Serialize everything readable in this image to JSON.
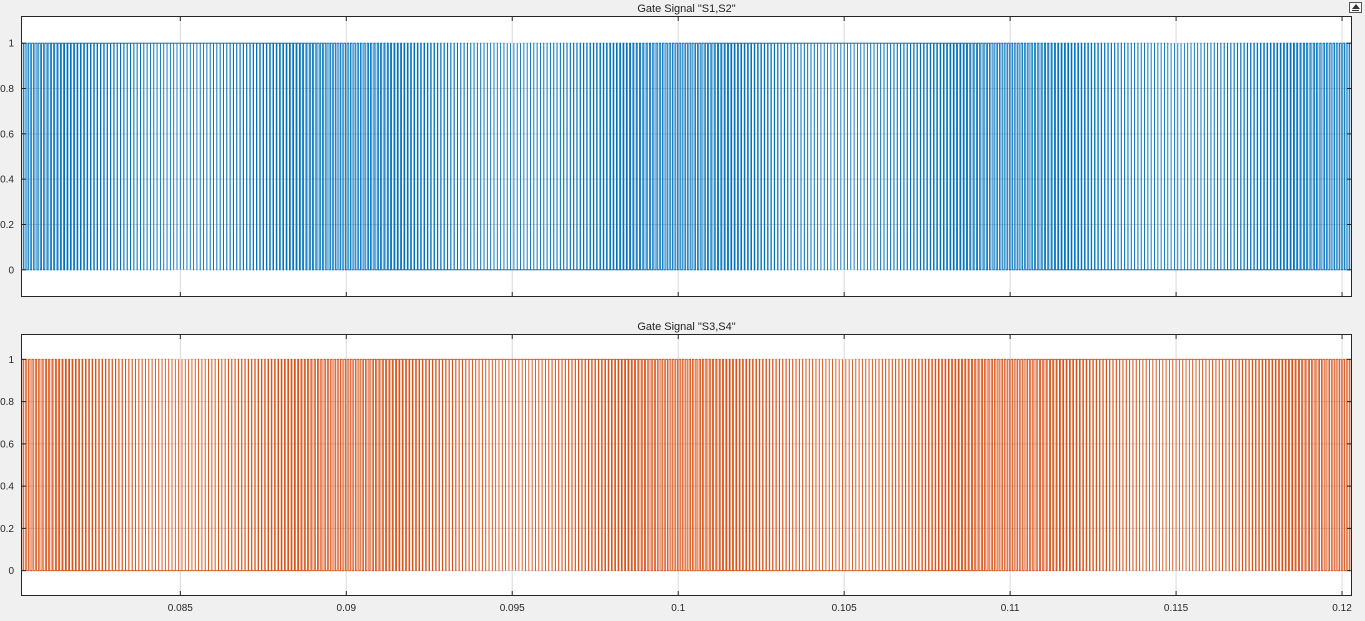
{
  "window": {
    "dock_button": "undock-arrow-icon"
  },
  "colors": {
    "background": "#f0f0f0",
    "axes_bg": "#ffffff",
    "grid": "#d9d9d9",
    "axis": "#262626",
    "series1": "#0072bd",
    "series2": "#d95319"
  },
  "chart_data": [
    {
      "type": "line",
      "title": "Gate Signal  \"S1,S2\"",
      "xlim": [
        0.0802,
        0.1203
      ],
      "ylim": [
        -0.12,
        1.12
      ],
      "xticks": [
        0.085,
        0.09,
        0.095,
        0.1,
        0.105,
        0.11,
        0.115,
        0.12
      ],
      "yticks": [
        0,
        0.2,
        0.4,
        0.6,
        0.8,
        1
      ],
      "xtick_labels": [
        "0.085",
        "0.09",
        "0.095",
        "0.1",
        "0.105",
        "0.11",
        "0.115",
        "0.12"
      ],
      "ytick_labels": [
        "0",
        "0.2",
        "0.4",
        "0.6",
        "0.8",
        "1"
      ],
      "show_xtick_labels": false,
      "grid": true,
      "series": [
        {
          "color": "#0072bd",
          "signal": "pwm",
          "low": 0,
          "high": 1,
          "carrier_period": 0.0001,
          "modulation_frequency": 50,
          "modulation_phase_deg": 0
        }
      ]
    },
    {
      "type": "line",
      "title": "Gate Signal  \"S3,S4\"",
      "xlim": [
        0.0802,
        0.1203
      ],
      "ylim": [
        -0.12,
        1.12
      ],
      "xticks": [
        0.085,
        0.09,
        0.095,
        0.1,
        0.105,
        0.11,
        0.115,
        0.12
      ],
      "yticks": [
        0,
        0.2,
        0.4,
        0.6,
        0.8,
        1
      ],
      "xtick_labels": [
        "0.085",
        "0.09",
        "0.095",
        "0.1",
        "0.105",
        "0.11",
        "0.115",
        "0.12"
      ],
      "ytick_labels": [
        "0",
        "0.2",
        "0.4",
        "0.6",
        "0.8",
        "1"
      ],
      "show_xtick_labels": true,
      "grid": true,
      "series": [
        {
          "color": "#d95319",
          "signal": "pwm",
          "low": 0,
          "high": 1,
          "carrier_period": 0.0001,
          "modulation_frequency": 50,
          "modulation_phase_deg": 180
        }
      ]
    }
  ]
}
